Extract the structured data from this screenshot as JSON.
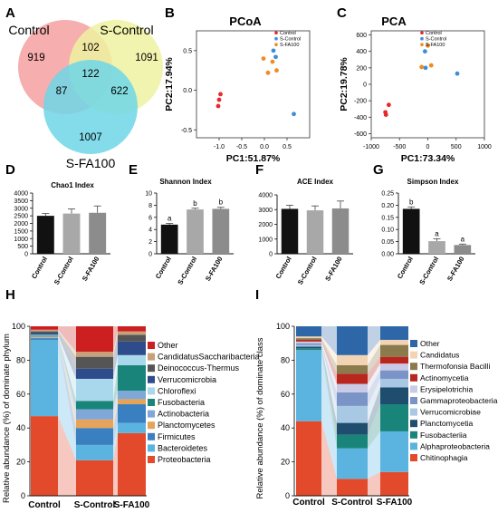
{
  "panel_letters": [
    "A",
    "B",
    "C",
    "D",
    "E",
    "F",
    "G",
    "H",
    "I"
  ],
  "venn": {
    "sets": [
      "Control",
      "S-Control",
      "S-FA100"
    ],
    "colors": [
      "#f4a0a0",
      "#eef2a0",
      "#6fd6e8"
    ],
    "regions": {
      "control_only": "919",
      "scontrol_only": "1091",
      "sfa_only": "1007",
      "control_scontrol": "102",
      "control_sfa": "87",
      "scontrol_sfa": "622",
      "all": "122"
    }
  },
  "chart_data": [
    {
      "id": "pcoa",
      "type": "scatter",
      "title": "PCoA",
      "xlabel": "PC1:51.87%",
      "ylabel": "PC2:17.94%",
      "xlim": [
        -1.5,
        1.0
      ],
      "ylim": [
        -0.6,
        0.75
      ],
      "xticks": [
        "-1.0",
        "-0.5",
        "0.0",
        "0.5"
      ],
      "xtick_values": [
        -1.0,
        -0.5,
        0.0,
        0.5
      ],
      "yticks": [
        "-0.5",
        "0.0",
        "0.5"
      ],
      "ytick_values": [
        -0.5,
        0.0,
        0.5
      ],
      "legend": [
        "Control",
        "S-Control",
        "S-FA100"
      ],
      "series": [
        {
          "name": "Control",
          "color": "#e8282a",
          "points": [
            [
              -1.0,
              -0.12
            ],
            [
              -0.97,
              -0.05
            ],
            [
              -1.02,
              -0.2
            ]
          ]
        },
        {
          "name": "S-Control",
          "color": "#3a8fd8",
          "points": [
            [
              0.2,
              0.5
            ],
            [
              0.25,
              0.42
            ],
            [
              0.65,
              -0.3
            ]
          ]
        },
        {
          "name": "S-FA100",
          "color": "#f08a24",
          "points": [
            [
              -0.02,
              0.4
            ],
            [
              0.18,
              0.36
            ],
            [
              0.27,
              0.25
            ],
            [
              0.08,
              0.22
            ]
          ]
        }
      ]
    },
    {
      "id": "pca",
      "type": "scatter",
      "title": "PCA",
      "xlabel": "PC1:73.34%",
      "ylabel": "PC2:19.78%",
      "xlim": [
        -1000,
        1000
      ],
      "ylim": [
        -650,
        650
      ],
      "xticks": [
        "-1000",
        "-500",
        "0",
        "500",
        "1000"
      ],
      "xtick_values": [
        -1000,
        -500,
        0,
        500,
        1000
      ],
      "yticks": [
        "-600",
        "-400",
        "-200",
        "0",
        "200",
        "400",
        "600"
      ],
      "ytick_values": [
        -600,
        -400,
        -200,
        0,
        200,
        400,
        600
      ],
      "legend": [
        "Control",
        "S-Control",
        "S-FA100"
      ],
      "series": [
        {
          "name": "Control",
          "color": "#e8282a",
          "points": [
            [
              -690,
              -250
            ],
            [
              -750,
              -340
            ],
            [
              -740,
              -370
            ]
          ]
        },
        {
          "name": "S-Control",
          "color": "#3a8fd8",
          "points": [
            [
              -50,
              400
            ],
            [
              -40,
              200
            ],
            [
              520,
              130
            ]
          ]
        },
        {
          "name": "S-FA100",
          "color": "#f08a24",
          "points": [
            [
              0,
              470
            ],
            [
              -110,
              210
            ],
            [
              60,
              230
            ]
          ]
        }
      ]
    },
    {
      "id": "chao1",
      "type": "bar",
      "title": "Chao1 Index",
      "categories": [
        "Control",
        "S-Control",
        "S-FA100"
      ],
      "values": [
        2500,
        2650,
        2700
      ],
      "errors": [
        150,
        300,
        450
      ],
      "colors": [
        "#111111",
        "#a8a8a8",
        "#8c8c8c"
      ],
      "ylim": [
        0,
        4000
      ],
      "yticks": [
        "0",
        "500",
        "1000",
        "1500",
        "2000",
        "2500",
        "3000",
        "3500",
        "4000"
      ],
      "labels": []
    },
    {
      "id": "shannon",
      "type": "bar",
      "title": "Shannon Index",
      "categories": [
        "Control",
        "S-Control",
        "S-FA100"
      ],
      "values": [
        4.8,
        7.3,
        7.4
      ],
      "errors": [
        0.2,
        0.2,
        0.25
      ],
      "colors": [
        "#111111",
        "#a8a8a8",
        "#8c8c8c"
      ],
      "ylim": [
        0,
        10
      ],
      "yticks": [
        "0",
        "2",
        "4",
        "6",
        "8",
        "10"
      ],
      "labels": [
        "a",
        "b",
        "b"
      ]
    },
    {
      "id": "ace",
      "type": "bar",
      "title": "ACE Index",
      "categories": [
        "Control",
        "S-Control",
        "S-FA100"
      ],
      "values": [
        3050,
        2950,
        3080
      ],
      "errors": [
        250,
        300,
        500
      ],
      "colors": [
        "#111111",
        "#a8a8a8",
        "#8c8c8c"
      ],
      "ylim": [
        0,
        4000
      ],
      "yticks": [
        "0",
        "1000",
        "2000",
        "3000",
        "4000"
      ],
      "labels": []
    },
    {
      "id": "simpson",
      "type": "bar",
      "title": "Simpson Index",
      "categories": [
        "Control",
        "S-Control",
        "S-FA100"
      ],
      "values": [
        0.185,
        0.052,
        0.036
      ],
      "errors": [
        0.008,
        0.01,
        0.004
      ],
      "colors": [
        "#111111",
        "#a8a8a8",
        "#8c8c8c"
      ],
      "ylim": [
        0,
        0.25
      ],
      "yticks": [
        "0.00",
        "0.05",
        "0.10",
        "0.15",
        "0.20",
        "0.25"
      ],
      "labels": [
        "b",
        "a",
        "a"
      ]
    },
    {
      "id": "phylum",
      "type": "bar",
      "stacked": true,
      "ylabel": "Relative abundance (%) of dominate phylum",
      "categories": [
        "Control",
        "S-Control",
        "S-FA100"
      ],
      "ylim": [
        0,
        100
      ],
      "yticks": [
        "0",
        "20",
        "40",
        "60",
        "80",
        "100"
      ],
      "series": [
        {
          "name": "Proteobacteria",
          "color": "#e24a2b",
          "values": [
            47,
            21,
            37
          ]
        },
        {
          "name": "Bacteroidetes",
          "color": "#5bb4e0",
          "values": [
            45,
            9,
            6
          ]
        },
        {
          "name": "Firmicutes",
          "color": "#3a7fc0",
          "values": [
            1,
            10,
            11
          ]
        },
        {
          "name": "Planctomycetes",
          "color": "#e6a35a",
          "values": [
            0.5,
            5,
            3
          ]
        },
        {
          "name": "Actinobacteria",
          "color": "#7fa7d8",
          "values": [
            0.5,
            6,
            5
          ]
        },
        {
          "name": "Fusobacteria",
          "color": "#19857a",
          "values": [
            0.5,
            5,
            15
          ]
        },
        {
          "name": "Chloroflexi",
          "color": "#a9d8ec",
          "values": [
            0.5,
            13,
            6
          ]
        },
        {
          "name": "Verrucomicrobia",
          "color": "#2e4c8c",
          "values": [
            1,
            6,
            8
          ]
        },
        {
          "name": "Deinococcus-Thermus",
          "color": "#555555",
          "values": [
            1,
            7,
            4
          ]
        },
        {
          "name": "CandidatusSaccharibacteria",
          "color": "#c8a07a",
          "values": [
            1,
            3,
            2
          ]
        },
        {
          "name": "Other",
          "color": "#cc1f1f",
          "values": [
            2,
            15,
            3
          ]
        }
      ]
    },
    {
      "id": "class",
      "type": "bar",
      "stacked": true,
      "ylabel": "Relative abundance (%) of dominate class",
      "categories": [
        "Control",
        "S-Control",
        "S-FA100"
      ],
      "ylim": [
        0,
        100
      ],
      "yticks": [
        "0",
        "20",
        "40",
        "60",
        "80",
        "100"
      ],
      "series": [
        {
          "name": "Chitinophagia",
          "color": "#e24a2b",
          "values": [
            44,
            10,
            14
          ]
        },
        {
          "name": "Alphaproteobacteria",
          "color": "#5bb4e0",
          "values": [
            42,
            18,
            24
          ]
        },
        {
          "name": "Fusobacteriia",
          "color": "#19857a",
          "values": [
            1,
            8,
            16
          ]
        },
        {
          "name": "Planctomycetia",
          "color": "#1f4d6e",
          "values": [
            1,
            7,
            10
          ]
        },
        {
          "name": "Verrucomicrobiae",
          "color": "#a8c8e4",
          "values": [
            1,
            10,
            5
          ]
        },
        {
          "name": "Gammaproteobacteria",
          "color": "#7a94c8",
          "values": [
            1,
            8,
            5
          ]
        },
        {
          "name": "Erysipelotrichia",
          "color": "#c9cbe6",
          "values": [
            1,
            5,
            4
          ]
        },
        {
          "name": "Actinomycetia",
          "color": "#b8261e",
          "values": [
            1,
            6,
            4
          ]
        },
        {
          "name": "Thermofonsia Bacilli",
          "color": "#8a7a4c",
          "values": [
            1,
            5,
            7
          ]
        },
        {
          "name": "Candidatus",
          "color": "#f2d4b4",
          "values": [
            1,
            6,
            3
          ]
        },
        {
          "name": "Other",
          "color": "#2e67a8",
          "values": [
            6,
            17,
            8
          ]
        }
      ]
    }
  ]
}
